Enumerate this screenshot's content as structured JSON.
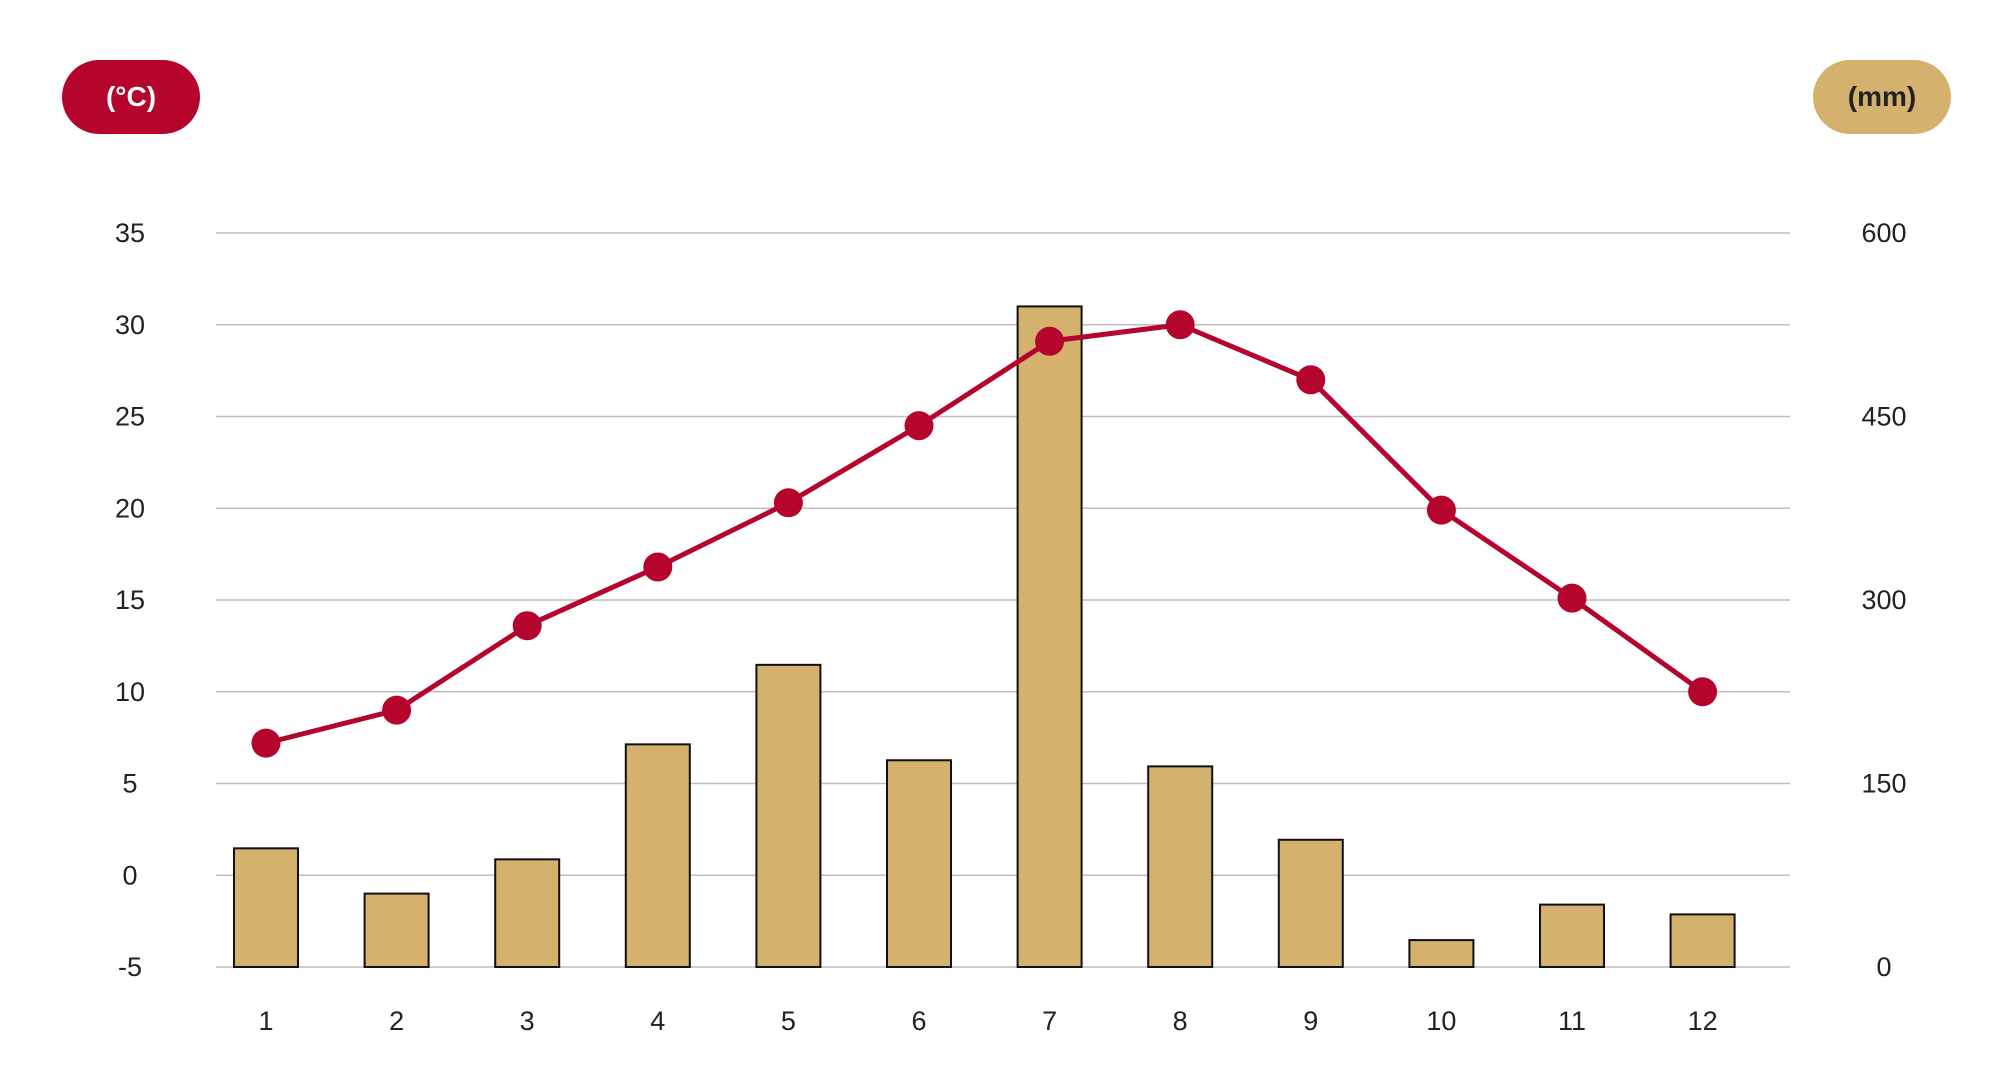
{
  "units": {
    "temperature": "(°C)",
    "precipitation": "(mm)"
  },
  "colors": {
    "temperature": "#B5052C",
    "precipitation": "#D4B16D",
    "bar_outline": "#111111",
    "grid": "#BFBFBF",
    "text": "#222222",
    "precipitation_pill_text": "#222222",
    "temperature_pill_text": "#ffffff"
  },
  "chart_data": {
    "type": "bar+line",
    "categories": [
      "1",
      "2",
      "3",
      "4",
      "5",
      "6",
      "7",
      "8",
      "9",
      "10",
      "11",
      "12"
    ],
    "series": [
      {
        "type": "bar",
        "axis": "right",
        "unit": "mm",
        "values": [
          97,
          60,
          88,
          182,
          247,
          169,
          540,
          164,
          104,
          22,
          51,
          43
        ]
      },
      {
        "type": "line",
        "axis": "left",
        "unit": "°C",
        "values": [
          7.2,
          9.0,
          13.6,
          16.8,
          20.3,
          24.5,
          29.1,
          30.0,
          27.0,
          19.9,
          15.1,
          10.0
        ]
      }
    ],
    "left_axis": {
      "ticks": [
        "35",
        "30",
        "25",
        "20",
        "15",
        "10",
        "5",
        "0",
        "-5"
      ],
      "ylim": [
        -5,
        35
      ]
    },
    "right_axis": {
      "ticks": [
        "600",
        "450",
        "300",
        "150",
        "0"
      ],
      "ylim": [
        0,
        600
      ]
    },
    "x_ticks": [
      "1",
      "2",
      "3",
      "4",
      "5",
      "6",
      "7",
      "8",
      "9",
      "10",
      "11",
      "12"
    ],
    "grid": true,
    "legend": false
  }
}
